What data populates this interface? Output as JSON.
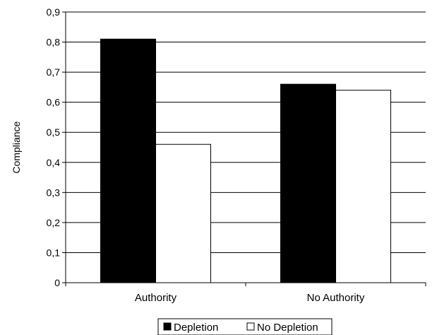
{
  "chart_data": {
    "type": "bar",
    "title": "",
    "xlabel": "",
    "ylabel": "Compliance",
    "categories": [
      "Authority",
      "No Authority"
    ],
    "series": [
      {
        "name": "Depletion",
        "values": [
          0.81,
          0.66
        ],
        "color": "#000000"
      },
      {
        "name": "No Depletion",
        "values": [
          0.46,
          0.64
        ],
        "color": "#ffffff"
      }
    ],
    "ylim": [
      0,
      0.9
    ],
    "yticks": [
      "0",
      "0,1",
      "0,2",
      "0,3",
      "0,4",
      "0,5",
      "0,6",
      "0,7",
      "0,8",
      "0,9"
    ],
    "grid": true,
    "legend_position": "bottom"
  }
}
